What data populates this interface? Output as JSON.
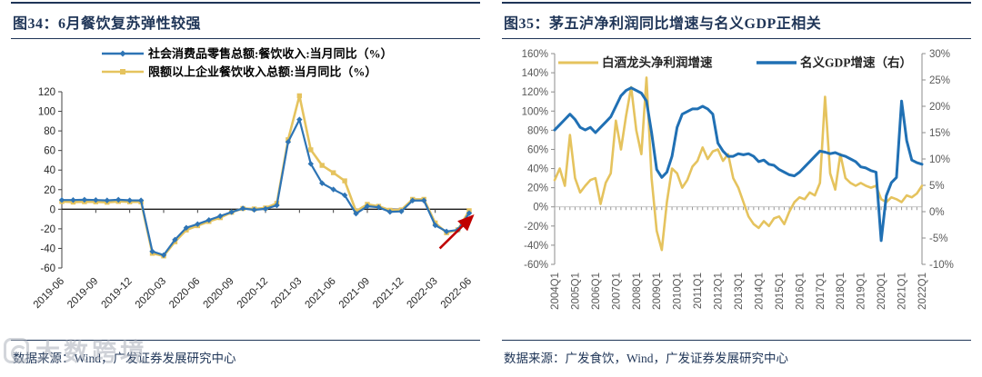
{
  "watermark": {
    "text": "大数跨境",
    "logo": "rounded-square-logo"
  },
  "colors": {
    "navy": "#1f3557",
    "blue34": "#2e74b5",
    "yellow": "#e5c35e",
    "blue35": "#2070b4",
    "axis_gray": "#8c8c8c",
    "tick_text_gray": "#595959",
    "red_arrow": "#c00000",
    "zero_line_black": "#1a1a1a"
  },
  "chart_data": [
    {
      "type": "line",
      "panel": "left",
      "title": "图34：6月餐饮复苏弹性较强",
      "source": "数据来源：Wind，广发证券发展研究中心",
      "ylim": [
        -60,
        120
      ],
      "ytick_step": 20,
      "x_tick_every": 3,
      "grid": false,
      "legend_position": "top",
      "x": [
        "2019-06",
        "2019-07",
        "2019-08",
        "2019-09",
        "2019-10",
        "2019-11",
        "2019-12",
        "2020-01",
        "2020-02",
        "2020-03",
        "2020-04",
        "2020-05",
        "2020-06",
        "2020-07",
        "2020-08",
        "2020-09",
        "2020-10",
        "2020-11",
        "2020-12",
        "2021-01",
        "2021-02",
        "2021-03",
        "2021-04",
        "2021-05",
        "2021-06",
        "2021-07",
        "2021-08",
        "2021-09",
        "2021-10",
        "2021-11",
        "2021-12",
        "2022-01",
        "2022-02",
        "2022-03",
        "2022-04",
        "2022-05",
        "2022-06"
      ],
      "series": [
        {
          "name": "社会消费品零售总额:餐饮收入:当月同比（%）",
          "color": "#2e74b5",
          "marker": "diamond",
          "values": [
            9.4,
            9.4,
            9.7,
            9.4,
            9.0,
            9.7,
            9.1,
            9.0,
            -43.1,
            -46.8,
            -31.1,
            -18.9,
            -15.2,
            -11.0,
            -7.0,
            -2.9,
            0.8,
            -0.6,
            0.4,
            4.0,
            68.7,
            91.6,
            46.4,
            26.6,
            20.2,
            14.3,
            -4.5,
            3.1,
            2.0,
            -2.7,
            -2.2,
            8.9,
            8.9,
            -16.4,
            -22.7,
            -21.1,
            -4.0
          ]
        },
        {
          "name": "限额以上企业餐饮收入总额:当月同比（%）",
          "color": "#e5c35e",
          "marker": "square",
          "values": [
            7.9,
            7.3,
            7.7,
            7.6,
            7.1,
            8.0,
            7.6,
            7.5,
            -45.0,
            -47.7,
            -33.2,
            -21.2,
            -16.8,
            -12.5,
            -8.6,
            -3.1,
            0.8,
            0.3,
            1.3,
            6.0,
            71.0,
            115.9,
            60.7,
            44.8,
            37.3,
            29.0,
            -2.0,
            5.0,
            3.0,
            -1.0,
            -0.7,
            10.1,
            10.1,
            -14.0,
            -24.0,
            -21.0,
            -1.5
          ]
        }
      ],
      "annotation": {
        "type": "arrow",
        "color": "#c00000",
        "from": [
          33.4,
          -40
        ],
        "to": [
          36.3,
          -7
        ]
      }
    },
    {
      "type": "line",
      "panel": "right",
      "title": "图35：茅五泸净利润同比增速与名义GDP正相关",
      "source": "数据来源：广发食饮，Wind，广发证券发展研究中心",
      "left_axis": {
        "lim": [
          -60,
          160
        ],
        "step": 20,
        "format": "percent"
      },
      "right_axis": {
        "lim": [
          -10,
          30
        ],
        "step": 5,
        "format": "percent"
      },
      "x_tick_every": 4,
      "grid": false,
      "zero_line": "ticked-gray",
      "legend_position": "top-inside",
      "x": [
        "2004Q1",
        "2004Q2",
        "2004Q3",
        "2004Q4",
        "2005Q1",
        "2005Q2",
        "2005Q3",
        "2005Q4",
        "2006Q1",
        "2006Q2",
        "2006Q3",
        "2006Q4",
        "2007Q1",
        "2007Q2",
        "2007Q3",
        "2007Q4",
        "2008Q1",
        "2008Q2",
        "2008Q3",
        "2008Q4",
        "2009Q1",
        "2009Q2",
        "2009Q3",
        "2009Q4",
        "2010Q1",
        "2010Q2",
        "2010Q3",
        "2010Q4",
        "2011Q1",
        "2011Q2",
        "2011Q3",
        "2011Q4",
        "2012Q1",
        "2012Q2",
        "2012Q3",
        "2012Q4",
        "2013Q1",
        "2013Q2",
        "2013Q3",
        "2013Q4",
        "2014Q1",
        "2014Q2",
        "2014Q3",
        "2014Q4",
        "2015Q1",
        "2015Q2",
        "2015Q3",
        "2015Q4",
        "2016Q1",
        "2016Q2",
        "2016Q3",
        "2016Q4",
        "2017Q1",
        "2017Q2",
        "2017Q3",
        "2017Q4",
        "2018Q1",
        "2018Q2",
        "2018Q3",
        "2018Q4",
        "2019Q1",
        "2019Q2",
        "2019Q3",
        "2019Q4",
        "2020Q1",
        "2020Q2",
        "2020Q3",
        "2020Q4",
        "2021Q1",
        "2021Q2",
        "2021Q3",
        "2021Q4",
        "2022Q1"
      ],
      "series": [
        {
          "name": "白酒龙头净利润增速",
          "color": "#e5c35e",
          "axis": "left",
          "values": [
            28,
            40,
            22,
            75,
            30,
            15,
            22,
            28,
            30,
            3,
            25,
            35,
            90,
            60,
            95,
            125,
            80,
            55,
            135,
            30,
            -25,
            -45,
            5,
            40,
            35,
            20,
            28,
            42,
            48,
            62,
            50,
            58,
            60,
            48,
            55,
            30,
            20,
            5,
            -10,
            -18,
            -22,
            -15,
            -20,
            -12,
            -10,
            -18,
            -5,
            5,
            10,
            8,
            15,
            12,
            25,
            115,
            35,
            18,
            55,
            30,
            25,
            22,
            25,
            22,
            20,
            22,
            8,
            5,
            10,
            8,
            5,
            12,
            10,
            14,
            22
          ]
        },
        {
          "name": "名义GDP增速（右）",
          "color": "#2070b4",
          "axis": "right",
          "values": [
            15.5,
            16.5,
            17.5,
            18.5,
            17.5,
            16.0,
            15.5,
            16.0,
            15.0,
            16.0,
            17.0,
            18.0,
            20.0,
            22.0,
            23.0,
            23.5,
            23.0,
            22.5,
            21.0,
            15.0,
            8.0,
            6.5,
            7.5,
            10.5,
            16.0,
            18.5,
            19.0,
            19.5,
            19.5,
            20.0,
            19.5,
            18.5,
            13.0,
            11.5,
            10.5,
            10.5,
            11.0,
            10.8,
            11.0,
            10.5,
            9.5,
            9.8,
            9.0,
            8.8,
            8.0,
            7.5,
            7.0,
            6.8,
            7.5,
            8.5,
            9.5,
            10.5,
            11.5,
            11.3,
            11.0,
            11.2,
            10.8,
            10.5,
            10.0,
            9.5,
            8.5,
            8.3,
            7.8,
            7.5,
            -5.5,
            3.0,
            5.5,
            6.5,
            21.0,
            13.5,
            9.8,
            9.3,
            9.0
          ]
        }
      ]
    }
  ]
}
